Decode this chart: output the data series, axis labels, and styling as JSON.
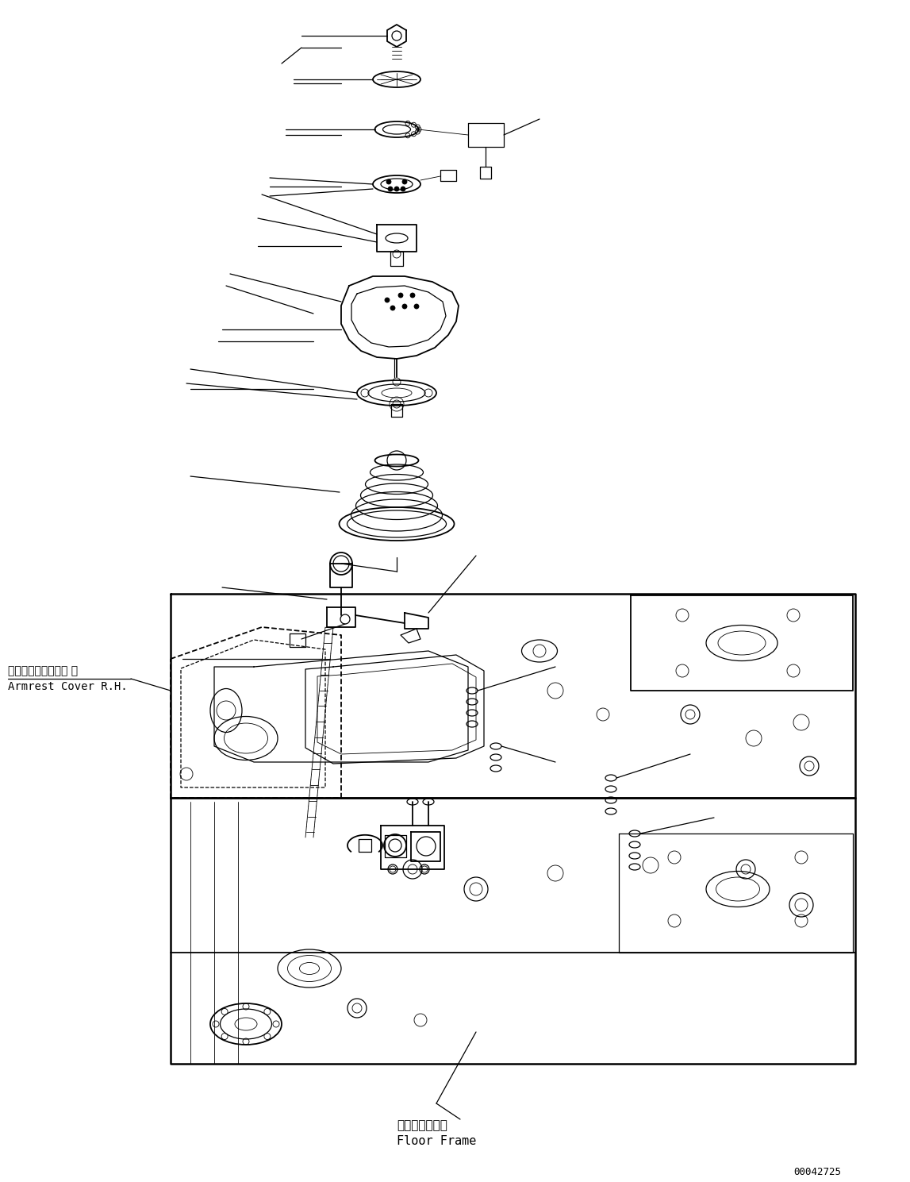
{
  "figure_width": 11.47,
  "figure_height": 14.89,
  "dpi": 100,
  "bg_color": "#ffffff",
  "line_color": "#000000",
  "part_id": "00042725",
  "label_armrest_jp": "アームレストカバー 右",
  "label_armrest_en": "Armrest Cover R.H.",
  "label_floor_jp": "フロアフレーム",
  "label_floor_en": "Floor Frame"
}
